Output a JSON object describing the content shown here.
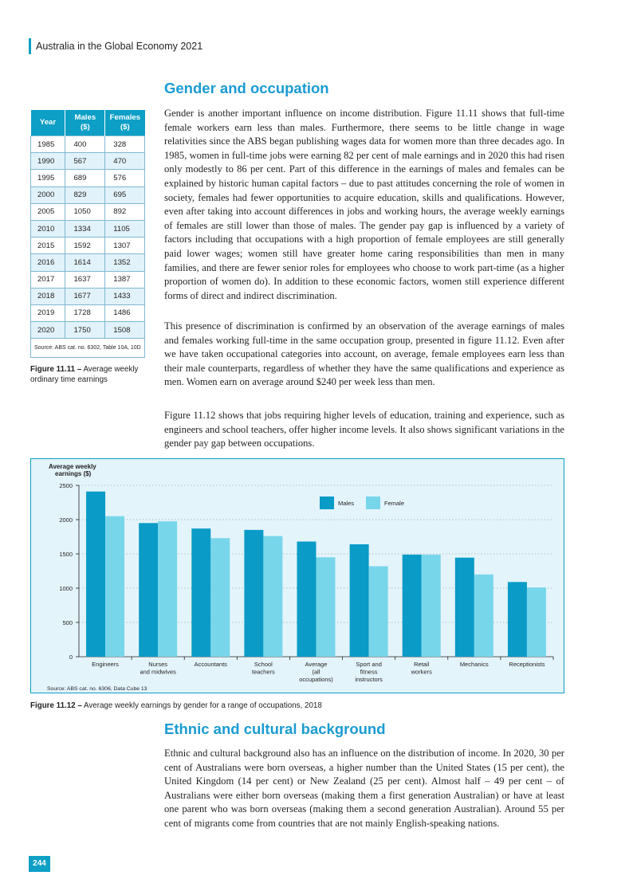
{
  "header": {
    "title": "Australia in the Global Economy 2021"
  },
  "section1": {
    "heading": "Gender and occupation",
    "para1": "Gender is another important influence on income distribution. Figure 11.11 shows that full-time female workers earn less than males. Furthermore, there seems to be little change in wage relativities since the ABS began publishing wages data for women more than three decades ago. In 1985, women in full-time jobs were earning 82 per cent of male earnings and in 2020 this had risen only modestly to 86 per cent. Part of this difference in the earnings of males and females can be explained by historic human capital factors – due to past attitudes concerning the role of women in society, females had fewer opportunities to acquire education, skills and qualifications. However, even after taking into account differences in jobs and working hours, the average weekly earnings of females are still lower than those of males. The gender pay gap is influenced by a variety of factors including that occupations with a high proportion of female employees are still generally paid lower wages; women still have greater home caring responsibilities than men in many families, and there are fewer senior roles for employees who choose to work part-time (as a higher proportion of women do). In addition to these economic factors, women still experience different forms of direct and indirect discrimination.",
    "para2": "This presence of discrimination is confirmed by an observation of the average earnings of males and females working full-time in the same occupation group, presented in figure 11.12. Even after we have taken occupational categories into account, on average, female employees earn less than their male counterparts, regardless of whether they have the same qualifications and experience as men. Women earn on average around $240 per week less than men.",
    "para3": "Figure 11.12 shows that jobs requiring higher levels of education, training and experience, such as engineers and school teachers, offer higher income levels. It also shows significant variations in the gender pay gap between occupations."
  },
  "table": {
    "headers": [
      "Year",
      "Males ($)",
      "Females ($)"
    ],
    "rows": [
      [
        "1985",
        "400",
        "328"
      ],
      [
        "1990",
        "567",
        "470"
      ],
      [
        "1995",
        "689",
        "576"
      ],
      [
        "2000",
        "829",
        "695"
      ],
      [
        "2005",
        "1050",
        "892"
      ],
      [
        "2010",
        "1334",
        "1105"
      ],
      [
        "2015",
        "1592",
        "1307"
      ],
      [
        "2016",
        "1614",
        "1352"
      ],
      [
        "2017",
        "1637",
        "1387"
      ],
      [
        "2018",
        "1677",
        "1433"
      ],
      [
        "2019",
        "1728",
        "1486"
      ],
      [
        "2020",
        "1750",
        "1508"
      ]
    ],
    "source": "Source: ABS cat. no. 6302, Table 10A, 10D"
  },
  "fig1111": {
    "label": "Figure 11.11 –",
    "caption": " Average weekly ordinary time earnings"
  },
  "chart_data": {
    "type": "bar",
    "ylabel": "Average weekly earnings ($)",
    "ylim": [
      0,
      2500
    ],
    "yticks": [
      "0",
      "500",
      "1000",
      "1500",
      "2000",
      "2500"
    ],
    "categories": [
      "Engineers",
      "Nurses and midwives",
      "Accountants",
      "School teachers",
      "Average (all occupations)",
      "Sport and fitness instructors",
      "Retail workers",
      "Mechanics",
      "Receptionists"
    ],
    "category_lines": [
      [
        "Engineers"
      ],
      [
        "Nurses",
        "and midwives"
      ],
      [
        "Accountants"
      ],
      [
        "School",
        "teachers"
      ],
      [
        "Average",
        "(all",
        "occupations)"
      ],
      [
        "Sport and",
        "fitness",
        "instructors"
      ],
      [
        "Retail",
        "workers"
      ],
      [
        "Mechanics"
      ],
      [
        "Receptionists"
      ]
    ],
    "series": [
      {
        "name": "Males",
        "color": "#0a9bc7",
        "values": [
          2410,
          1950,
          1870,
          1850,
          1680,
          1640,
          1490,
          1445,
          1090
        ]
      },
      {
        "name": "Female",
        "color": "#78d6ea",
        "values": [
          2050,
          1975,
          1730,
          1760,
          1450,
          1320,
          1490,
          1200,
          1010
        ]
      }
    ],
    "legend": "top-right",
    "grid": true,
    "source": "Source: ABS cat. no. 6306, Data Cube 13"
  },
  "fig1112": {
    "label": "Figure 11.12 –",
    "caption": " Average weekly earnings by gender for a range of occupations, 2018"
  },
  "section2": {
    "heading": "Ethnic and cultural background",
    "para1": "Ethnic and cultural background also has an influence on the distribution of income. In 2020, 30 per cent of Australians were born overseas, a higher number than the United States (15 per cent), the United Kingdom (14 per cent) or New Zealand (25 per cent). Almost half – 49 per cent – of Australians were either born overseas (making them a first generation Australian) or have at least one parent who was born overseas (making them a second generation Australian). Around 55 per cent of migrants come from countries that are not mainly English-speaking nations."
  },
  "page": {
    "number": "244"
  }
}
